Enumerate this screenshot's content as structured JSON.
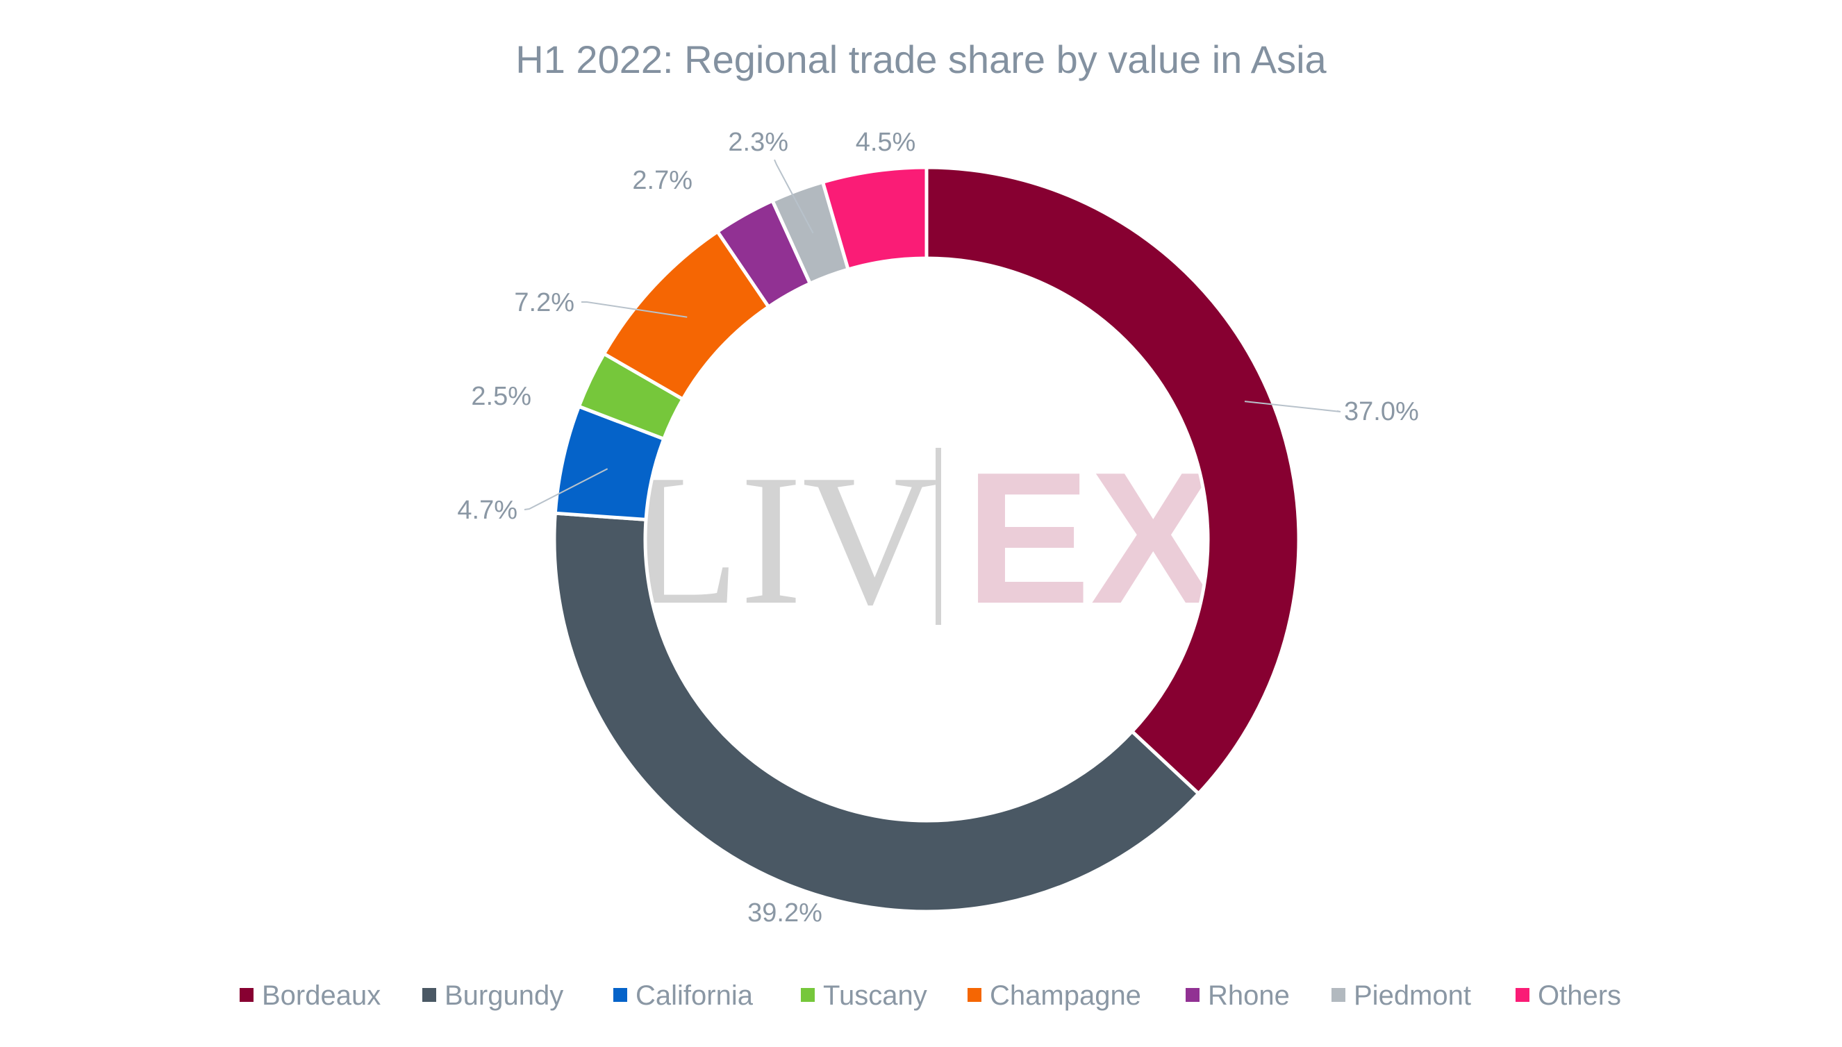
{
  "watermark": {
    "left_text": "LIV",
    "right_text": "EX",
    "left_color": "#d3d3d3",
    "right_color": "#ebcdd8",
    "divider_color": "#d3d3d3"
  },
  "chart_data": {
    "type": "pie",
    "variant": "donut",
    "title": "H1 2022: Regional trade share by value in Asia",
    "unit": "%",
    "categories": [
      "Bordeaux",
      "Burgundy",
      "California",
      "Tuscany",
      "Champagne",
      "Rhone",
      "Piedmont",
      "Others"
    ],
    "values": [
      37.0,
      39.2,
      4.7,
      2.5,
      7.2,
      2.7,
      2.3,
      4.5
    ],
    "data_labels": [
      "37.0%",
      "39.2%",
      "4.7%",
      "2.5%",
      "7.2%",
      "2.7%",
      "2.3%",
      "4.5%"
    ],
    "colors": [
      "#870031",
      "#4a5864",
      "#0563c9",
      "#76c73b",
      "#f56603",
      "#913193",
      "#b2b9bf",
      "#fa1c76"
    ],
    "start_angle_deg": 0,
    "direction": "clockwise",
    "legend_position": "bottom",
    "leader_line_color": "#b8c2cb"
  }
}
